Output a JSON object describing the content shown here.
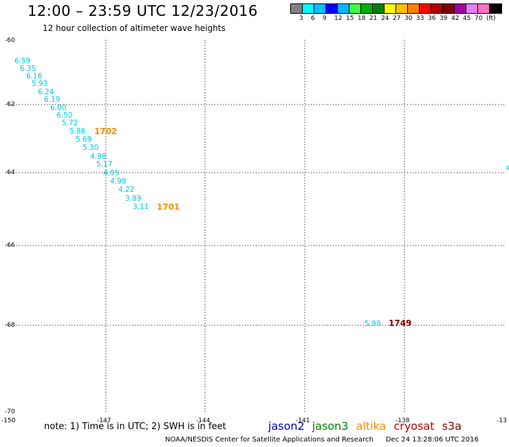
{
  "header": {
    "title": "12:00 – 23:59 UTC 12/23/2016",
    "subtitle": "12 hour collection of altimeter wave heights"
  },
  "legend": {
    "colors": [
      "#808080",
      "#00ffff",
      "#00bfff",
      "#0000ff",
      "#00b8ff",
      "#40ff40",
      "#00b000",
      "#008000",
      "#ffff00",
      "#ffc000",
      "#ff8000",
      "#ff0000",
      "#b00000",
      "#800000",
      "#a000a0",
      "#e080ff",
      "#ff70c0",
      "#000000"
    ],
    "labels": [
      "3",
      "6",
      "9",
      "12",
      "15",
      "18",
      "21",
      "24",
      "27",
      "30",
      "33",
      "36",
      "39",
      "42",
      "45",
      "70",
      "(ft)"
    ]
  },
  "axes": {
    "lat_labels": [
      "-60",
      "-62",
      "-64",
      "-66",
      "-68",
      "-70"
    ],
    "lon_labels": [
      "-150",
      "-147",
      "-144",
      "-141",
      "-138",
      "-13"
    ]
  },
  "observations": [
    {
      "value": "6.59",
      "color": "#00c8e0"
    },
    {
      "value": "6.35",
      "color": "#00c8e0"
    },
    {
      "value": "6.16",
      "color": "#00c8e0"
    },
    {
      "value": "5.93",
      "color": "#00c8e0"
    },
    {
      "value": "6.24",
      "color": "#00c8e0"
    },
    {
      "value": "6.19",
      "color": "#00c8e0"
    },
    {
      "value": "6.00",
      "color": "#00c8e0"
    },
    {
      "value": "6.50",
      "color": "#00c8e0"
    },
    {
      "value": "5.72",
      "color": "#00c8e0"
    },
    {
      "value": "5.86",
      "color": "#00c8e0"
    },
    {
      "value": "5.69",
      "color": "#00c8e0"
    },
    {
      "value": "5.30",
      "color": "#00c8e0"
    },
    {
      "value": "4.98",
      "color": "#00c8e0"
    },
    {
      "value": "5.17",
      "color": "#00c8e0"
    },
    {
      "value": "4.95",
      "color": "#00c8e0"
    },
    {
      "value": "4.98",
      "color": "#00c8e0"
    },
    {
      "value": "4.22",
      "color": "#00c8e0"
    },
    {
      "value": "3.89",
      "color": "#00c8e0"
    },
    {
      "value": "3.11",
      "color": "#00c8e0"
    },
    {
      "value": "5.98",
      "color": "#00c8e0"
    }
  ],
  "time_labels": [
    {
      "value": "1702",
      "color": "#ff8c00"
    },
    {
      "value": "1701",
      "color": "#ff8c00"
    },
    {
      "value": "1749",
      "color": "#800000"
    }
  ],
  "edge_mark": {
    "value": "4",
    "color": "#00c8e0"
  },
  "note": "note: 1) Time is in UTC; 2) SWH is in feet",
  "satellites": [
    {
      "name": "jason2",
      "color": "#0000c0"
    },
    {
      "name": "jason3",
      "color": "#008000"
    },
    {
      "name": "altika",
      "color": "#ff8c00"
    },
    {
      "name": "cryosat",
      "color": "#c00000"
    },
    {
      "name": "s3a",
      "color": "#800000"
    }
  ],
  "footer": {
    "credit": "NOAA/NESDIS Center for Satellite Applications and Research",
    "timestamp": "Dec 24 13:28:06 UTC 2016"
  }
}
